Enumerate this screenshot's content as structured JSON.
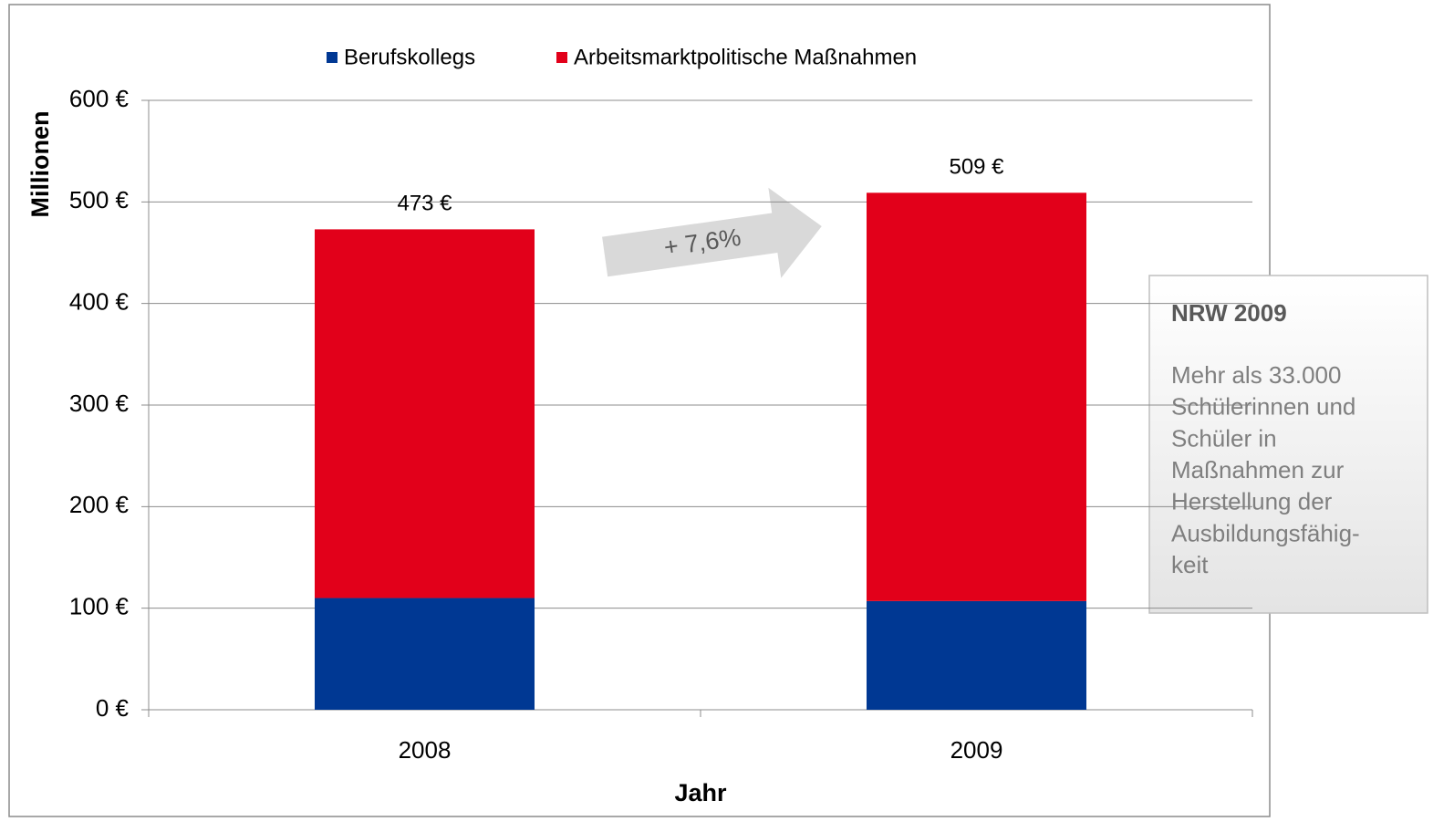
{
  "chart_data": {
    "type": "stacked_bar",
    "categories": [
      "2008",
      "2009"
    ],
    "series": [
      {
        "name": "Berufskollegs",
        "color": "#003893",
        "values": [
          110,
          107
        ]
      },
      {
        "name": "Arbeitsmarktpolitische Maßnahmen",
        "color": "#e2001a",
        "values": [
          363,
          402
        ]
      }
    ],
    "totals": [
      473,
      509
    ],
    "total_labels": [
      "473 €",
      "509 €"
    ],
    "ylim": [
      0,
      600
    ],
    "yticks": [
      {
        "value": 0,
        "label": "0 €"
      },
      {
        "value": 100,
        "label": "100 €"
      },
      {
        "value": 200,
        "label": "200 €"
      },
      {
        "value": 300,
        "label": "300 €"
      },
      {
        "value": 400,
        "label": "400 €"
      },
      {
        "value": 500,
        "label": "500 €"
      },
      {
        "value": 600,
        "label": "600 €"
      }
    ],
    "grid": true,
    "y_label": "Millionen",
    "x_label": "Jahr",
    "annotation": "+ 7,6%",
    "note": {
      "title": "NRW 2009",
      "lines": [
        "Mehr als 33.000",
        "Schülerinnen und",
        "Schüler in",
        "Maßnahmen zur",
        "Herstellung der",
        "Ausbildungsfähig-",
        "keit"
      ]
    }
  }
}
